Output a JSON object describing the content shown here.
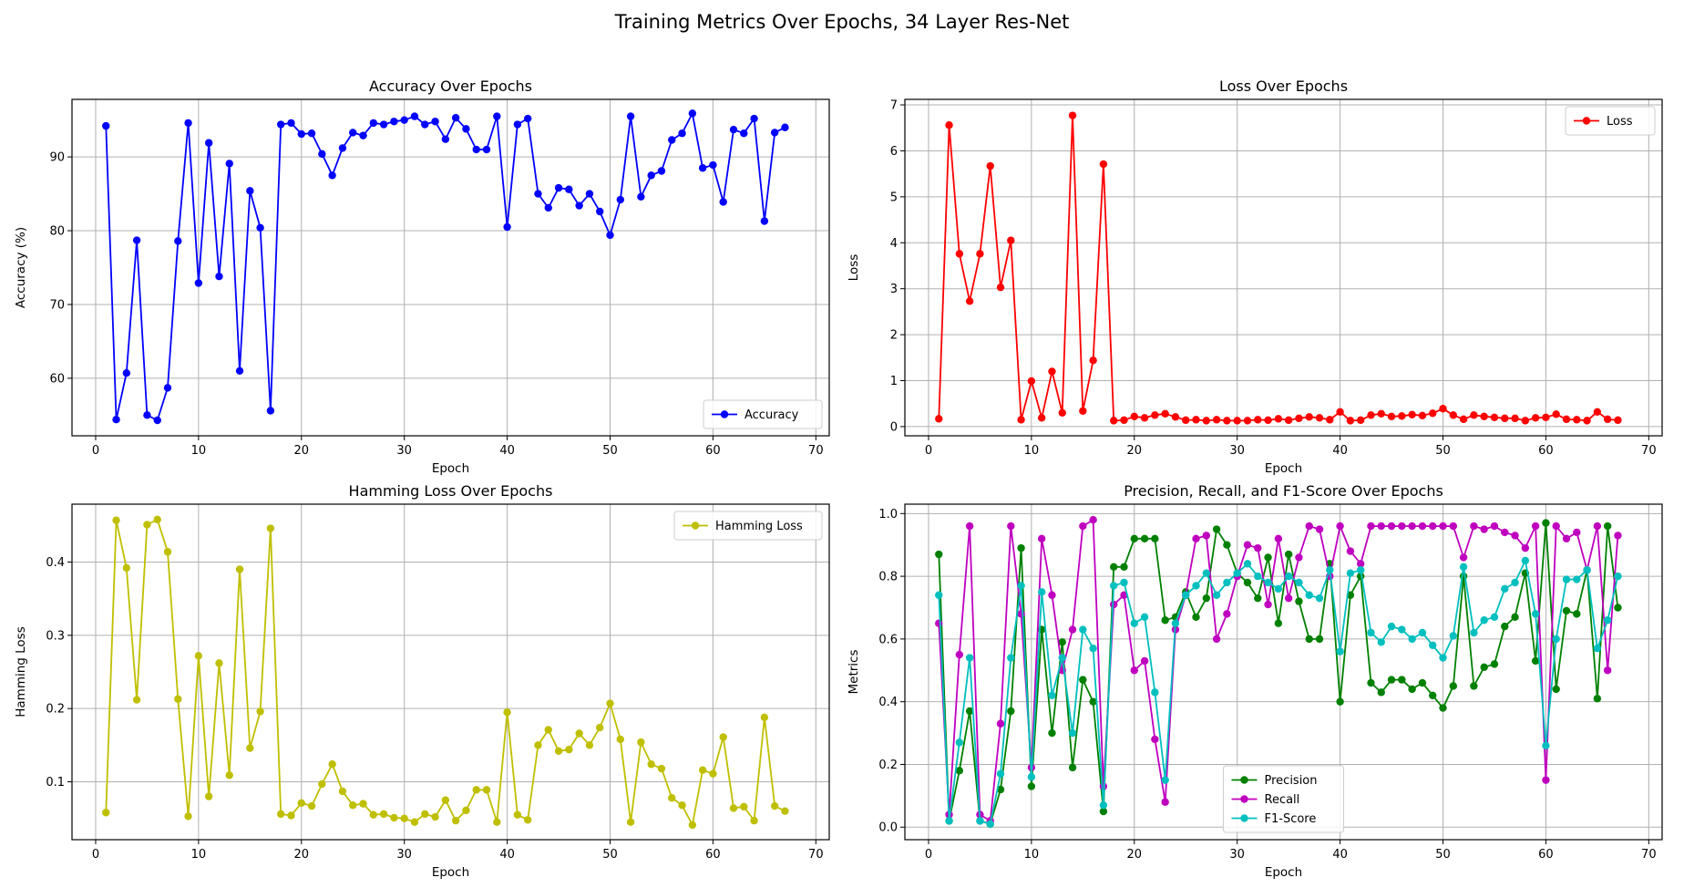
{
  "figure_title": "Training Metrics Over Epochs, 34 Layer Res-Net",
  "chart_data": [
    {
      "type": "line",
      "title": "Accuracy Over Epochs",
      "xlabel": "Epoch",
      "ylabel": "Accuracy (%)",
      "xlim": [
        -2.3,
        71.3
      ],
      "ylim": [
        52.2,
        97.8
      ],
      "xticks": [
        0,
        10,
        20,
        30,
        40,
        50,
        60,
        70
      ],
      "yticks": [
        60,
        70,
        80,
        90
      ],
      "grid": true,
      "legend_position": "lower right",
      "x": [
        1,
        2,
        3,
        4,
        5,
        6,
        7,
        8,
        9,
        10,
        11,
        12,
        13,
        14,
        15,
        16,
        17,
        18,
        19,
        20,
        21,
        22,
        23,
        24,
        25,
        26,
        27,
        28,
        29,
        30,
        31,
        32,
        33,
        34,
        35,
        36,
        37,
        38,
        39,
        40,
        41,
        42,
        43,
        44,
        45,
        46,
        47,
        48,
        49,
        50,
        51,
        52,
        53,
        54,
        55,
        56,
        57,
        58,
        59,
        60,
        61,
        62,
        63,
        64,
        65,
        66,
        67
      ],
      "series": [
        {
          "name": "Accuracy",
          "color": "#0000ff",
          "values": [
            94.2,
            54.4,
            60.7,
            78.7,
            55.0,
            54.3,
            58.7,
            78.6,
            94.6,
            72.9,
            91.9,
            73.8,
            89.1,
            61.0,
            85.4,
            80.4,
            55.6,
            94.4,
            94.6,
            93.1,
            93.2,
            90.4,
            87.5,
            91.2,
            93.3,
            92.9,
            94.6,
            94.4,
            94.8,
            95.0,
            95.5,
            94.4,
            94.8,
            92.4,
            95.3,
            93.8,
            91.0,
            91.0,
            95.5,
            80.5,
            94.4,
            95.2,
            85.0,
            83.1,
            85.8,
            85.6,
            83.4,
            85.0,
            82.6,
            79.4,
            84.2,
            95.5,
            84.6,
            87.5,
            88.1,
            92.3,
            93.2,
            95.9,
            88.5,
            88.9,
            83.9,
            93.7,
            93.2,
            95.2,
            81.3,
            93.3,
            94.0
          ]
        }
      ]
    },
    {
      "type": "line",
      "title": "Loss Over Epochs",
      "xlabel": "Epoch",
      "ylabel": "Loss",
      "xlim": [
        -2.3,
        71.3
      ],
      "ylim": [
        -0.2,
        7.12
      ],
      "xticks": [
        0,
        10,
        20,
        30,
        40,
        50,
        60,
        70
      ],
      "yticks": [
        0,
        1,
        2,
        3,
        4,
        5,
        6,
        7
      ],
      "grid": true,
      "legend_position": "upper right",
      "x": [
        1,
        2,
        3,
        4,
        5,
        6,
        7,
        8,
        9,
        10,
        11,
        12,
        13,
        14,
        15,
        16,
        17,
        18,
        19,
        20,
        21,
        22,
        23,
        24,
        25,
        26,
        27,
        28,
        29,
        30,
        31,
        32,
        33,
        34,
        35,
        36,
        37,
        38,
        39,
        40,
        41,
        42,
        43,
        44,
        45,
        46,
        47,
        48,
        49,
        50,
        51,
        52,
        53,
        54,
        55,
        56,
        57,
        58,
        59,
        60,
        61,
        62,
        63,
        64,
        65,
        66,
        67
      ],
      "series": [
        {
          "name": "Loss",
          "color": "#ff0000",
          "values": [
            0.17,
            6.56,
            3.76,
            2.73,
            3.76,
            5.67,
            3.03,
            4.05,
            0.15,
            0.99,
            0.19,
            1.2,
            0.3,
            6.77,
            0.34,
            1.44,
            5.71,
            0.13,
            0.14,
            0.22,
            0.19,
            0.25,
            0.28,
            0.21,
            0.14,
            0.15,
            0.13,
            0.15,
            0.13,
            0.13,
            0.13,
            0.15,
            0.14,
            0.17,
            0.14,
            0.18,
            0.21,
            0.19,
            0.15,
            0.32,
            0.13,
            0.14,
            0.25,
            0.28,
            0.22,
            0.23,
            0.26,
            0.24,
            0.29,
            0.39,
            0.25,
            0.16,
            0.25,
            0.22,
            0.2,
            0.18,
            0.18,
            0.13,
            0.19,
            0.2,
            0.27,
            0.16,
            0.15,
            0.13,
            0.32,
            0.16,
            0.14
          ]
        }
      ]
    },
    {
      "type": "line",
      "title": "Hamming Loss Over Epochs",
      "xlabel": "Epoch",
      "ylabel": "Hamming Loss",
      "xlim": [
        -2.3,
        71.3
      ],
      "ylim": [
        0.021,
        0.479
      ],
      "xticks": [
        0,
        10,
        20,
        30,
        40,
        50,
        60,
        70
      ],
      "yticks": [
        0.1,
        0.2,
        0.3,
        0.4
      ],
      "grid": true,
      "legend_position": "upper right",
      "x": [
        1,
        2,
        3,
        4,
        5,
        6,
        7,
        8,
        9,
        10,
        11,
        12,
        13,
        14,
        15,
        16,
        17,
        18,
        19,
        20,
        21,
        22,
        23,
        24,
        25,
        26,
        27,
        28,
        29,
        30,
        31,
        32,
        33,
        34,
        35,
        36,
        37,
        38,
        39,
        40,
        41,
        42,
        43,
        44,
        45,
        46,
        47,
        48,
        49,
        50,
        51,
        52,
        53,
        54,
        55,
        56,
        57,
        58,
        59,
        60,
        61,
        62,
        63,
        64,
        65,
        66,
        67
      ],
      "series": [
        {
          "name": "Hamming Loss",
          "color": "#bfbf00",
          "values": [
            0.058,
            0.457,
            0.392,
            0.212,
            0.451,
            0.458,
            0.414,
            0.213,
            0.053,
            0.272,
            0.08,
            0.262,
            0.109,
            0.39,
            0.146,
            0.196,
            0.446,
            0.056,
            0.054,
            0.071,
            0.067,
            0.097,
            0.124,
            0.087,
            0.068,
            0.07,
            0.055,
            0.056,
            0.051,
            0.05,
            0.045,
            0.056,
            0.052,
            0.075,
            0.047,
            0.061,
            0.089,
            0.089,
            0.045,
            0.195,
            0.055,
            0.048,
            0.15,
            0.171,
            0.142,
            0.144,
            0.166,
            0.15,
            0.174,
            0.207,
            0.158,
            0.045,
            0.154,
            0.124,
            0.118,
            0.078,
            0.068,
            0.041,
            0.116,
            0.111,
            0.161,
            0.064,
            0.066,
            0.047,
            0.188,
            0.067,
            0.06
          ]
        }
      ]
    },
    {
      "type": "line",
      "title": "Precision, Recall, and F1-Score Over Epochs",
      "xlabel": "Epoch",
      "ylabel": "Metrics",
      "xlim": [
        -2.3,
        71.3
      ],
      "ylim": [
        -0.04,
        1.03
      ],
      "xticks": [
        0,
        10,
        20,
        30,
        40,
        50,
        60,
        70
      ],
      "yticks": [
        0.0,
        0.2,
        0.4,
        0.6,
        0.8,
        1.0
      ],
      "grid": true,
      "legend_position": "lower center",
      "x": [
        1,
        2,
        3,
        4,
        5,
        6,
        7,
        8,
        9,
        10,
        11,
        12,
        13,
        14,
        15,
        16,
        17,
        18,
        19,
        20,
        21,
        22,
        23,
        24,
        25,
        26,
        27,
        28,
        29,
        30,
        31,
        32,
        33,
        34,
        35,
        36,
        37,
        38,
        39,
        40,
        41,
        42,
        43,
        44,
        45,
        46,
        47,
        48,
        49,
        50,
        51,
        52,
        53,
        54,
        55,
        56,
        57,
        58,
        59,
        60,
        61,
        62,
        63,
        64,
        65,
        66,
        67
      ],
      "series": [
        {
          "name": "Precision",
          "color": "#008000",
          "values": [
            0.87,
            0.02,
            0.18,
            0.37,
            0.02,
            0.01,
            0.12,
            0.37,
            0.89,
            0.13,
            0.63,
            0.3,
            0.59,
            0.19,
            0.47,
            0.4,
            0.05,
            0.83,
            0.83,
            0.92,
            0.92,
            0.92,
            0.66,
            0.67,
            0.75,
            0.67,
            0.73,
            0.95,
            0.9,
            0.81,
            0.78,
            0.73,
            0.86,
            0.65,
            0.87,
            0.72,
            0.6,
            0.6,
            0.84,
            0.4,
            0.74,
            0.8,
            0.46,
            0.43,
            0.47,
            0.47,
            0.44,
            0.46,
            0.42,
            0.38,
            0.45,
            0.8,
            0.45,
            0.51,
            0.52,
            0.64,
            0.67,
            0.81,
            0.53,
            0.97,
            0.44,
            0.69,
            0.68,
            0.82,
            0.41,
            0.96,
            0.7
          ]
        },
        {
          "name": "Recall",
          "color": "#bf00bf",
          "values": [
            0.65,
            0.04,
            0.55,
            0.96,
            0.04,
            0.02,
            0.33,
            0.96,
            0.68,
            0.19,
            0.92,
            0.74,
            0.5,
            0.63,
            0.96,
            0.98,
            0.13,
            0.71,
            0.74,
            0.5,
            0.53,
            0.28,
            0.08,
            0.63,
            0.74,
            0.92,
            0.93,
            0.6,
            0.68,
            0.8,
            0.9,
            0.89,
            0.71,
            0.92,
            0.73,
            0.86,
            0.96,
            0.95,
            0.8,
            0.96,
            0.88,
            0.84,
            0.96,
            0.96,
            0.96,
            0.96,
            0.96,
            0.96,
            0.96,
            0.96,
            0.96,
            0.86,
            0.96,
            0.95,
            0.96,
            0.94,
            0.93,
            0.89,
            0.96,
            0.15,
            0.96,
            0.92,
            0.94,
            0.82,
            0.96,
            0.5,
            0.93
          ]
        },
        {
          "name": "F1-Score",
          "color": "#00bfbf",
          "values": [
            0.74,
            0.02,
            0.27,
            0.54,
            0.02,
            0.01,
            0.17,
            0.54,
            0.77,
            0.16,
            0.75,
            0.42,
            0.54,
            0.3,
            0.63,
            0.57,
            0.07,
            0.77,
            0.78,
            0.65,
            0.67,
            0.43,
            0.15,
            0.65,
            0.74,
            0.77,
            0.81,
            0.74,
            0.78,
            0.81,
            0.84,
            0.8,
            0.78,
            0.76,
            0.8,
            0.78,
            0.74,
            0.73,
            0.82,
            0.56,
            0.81,
            0.82,
            0.62,
            0.59,
            0.64,
            0.63,
            0.6,
            0.62,
            0.58,
            0.54,
            0.61,
            0.83,
            0.62,
            0.66,
            0.67,
            0.76,
            0.78,
            0.85,
            0.68,
            0.26,
            0.6,
            0.79,
            0.79,
            0.82,
            0.57,
            0.66,
            0.8
          ]
        }
      ]
    }
  ]
}
